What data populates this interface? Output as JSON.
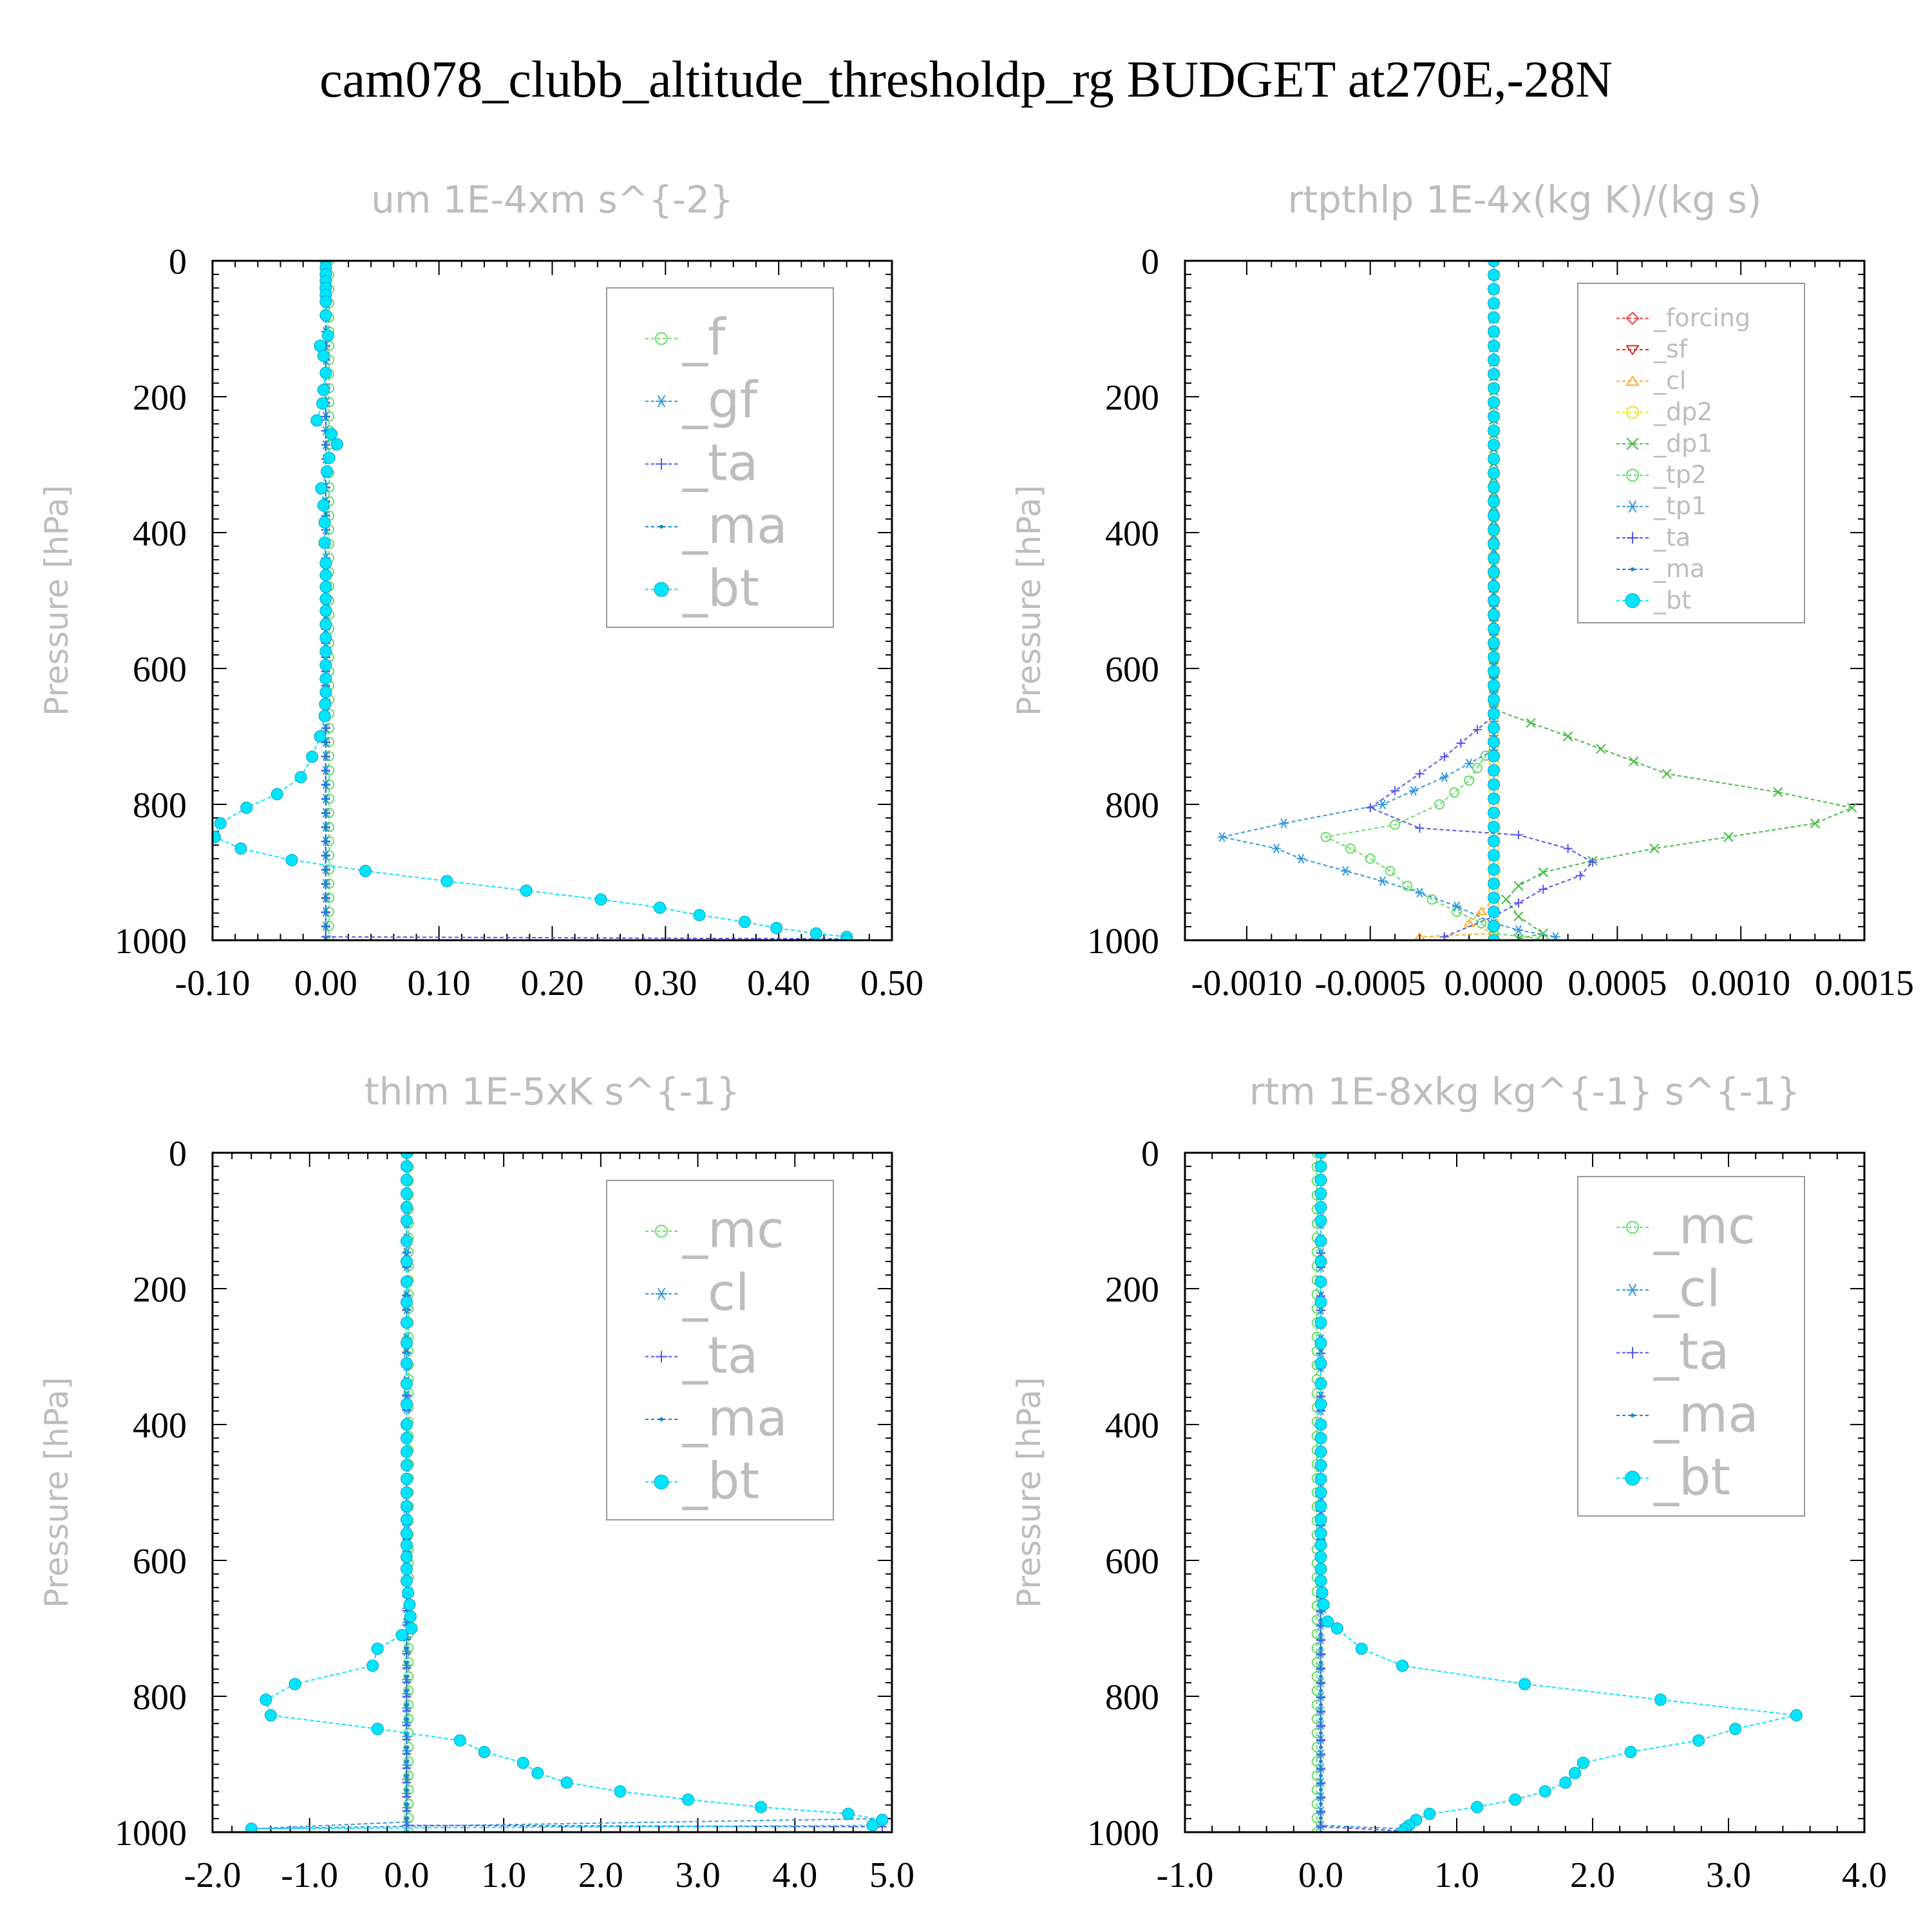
{
  "title": "cam078_clubb_altitude_thresholdp_rg  BUDGET at270E,-28N",
  "chart_data": [
    {
      "type": "line",
      "title": "um  1E-4xm s^{-2}",
      "ylabel": "Pressure [hPa]",
      "xlim": [
        -0.1,
        0.5
      ],
      "ylim": [
        1000,
        0
      ],
      "xticks": [
        "-0.10",
        "0.00",
        "0.10",
        "0.20",
        "0.30",
        "0.40",
        "0.50"
      ],
      "yticks": [
        "0",
        "200",
        "400",
        "600",
        "800",
        "1000"
      ],
      "legend_position": "top-right",
      "series": [
        {
          "name": "_f",
          "color": "#66dd66",
          "marker": "circle-open",
          "x": [
            0.003,
            0.003
          ],
          "y": [
            0,
            1000
          ]
        },
        {
          "name": "_gf",
          "color": "#3399dd",
          "marker": "asterisk",
          "x": [
            0.0,
            0.0
          ],
          "y": [
            0,
            1000
          ]
        },
        {
          "name": "_ta",
          "color": "#5555ee",
          "marker": "plus",
          "x": [
            0.0,
            0.0,
            0.0,
            0.46
          ],
          "y": [
            0,
            980,
            995,
            998
          ]
        },
        {
          "name": "_ma",
          "color": "#1188cc",
          "marker": "dot",
          "x": [
            0.0,
            0.0
          ],
          "y": [
            0,
            1000
          ]
        },
        {
          "name": "_bt",
          "color": "#00e5ff",
          "marker": "circle-filled",
          "x": [
            0.0,
            0.0,
            0.0,
            0.0,
            0.0,
            0.0,
            0.0,
            0.0,
            0.002,
            -0.005,
            -0.002,
            0.0,
            -0.002,
            -0.003,
            -0.008,
            0.005,
            0.01,
            0.003,
            0.001,
            -0.004,
            -0.002,
            -0.001,
            -0.001,
            0.0,
            0.0,
            0.0,
            0.0,
            0.0,
            0.0,
            -0.001,
            -0.005,
            -0.012,
            -0.022,
            -0.043,
            -0.07,
            -0.093,
            -0.098,
            -0.075,
            -0.03,
            0.035,
            0.107,
            0.177,
            0.243,
            0.295,
            0.33,
            0.37,
            0.398,
            0.433,
            0.46,
            0.46
          ],
          "y": [
            0,
            10,
            20,
            30,
            40,
            50,
            60,
            80,
            110,
            125,
            140,
            165,
            190,
            210,
            235,
            255,
            270,
            290,
            310,
            335,
            360,
            385,
            415,
            445,
            480,
            515,
            555,
            595,
            635,
            670,
            700,
            730,
            760,
            785,
            805,
            828,
            848,
            865,
            882,
            898,
            913,
            927,
            940,
            952,
            963,
            973,
            982,
            990,
            995,
            1000
          ]
        }
      ]
    },
    {
      "type": "line",
      "title": "rtpthlp  1E-4x(kg K)/(kg s)",
      "ylabel": "Pressure [hPa]",
      "xlim": [
        -0.00125,
        0.0015
      ],
      "ylim": [
        1000,
        0
      ],
      "xticks": [
        "-0.0010",
        "-0.0005",
        "0.0000",
        "0.0005",
        "0.0010",
        "0.0015"
      ],
      "yticks": [
        "0",
        "200",
        "400",
        "600",
        "800",
        "1000"
      ],
      "legend_position": "top-right",
      "series": [
        {
          "name": "_forcing",
          "color": "#ee4444",
          "marker": "diamond-open",
          "x": [
            0.0,
            0.0
          ],
          "y": [
            0,
            1000
          ]
        },
        {
          "name": "_sf",
          "color": "#ee2222",
          "marker": "triangle-down",
          "x": [
            0.0,
            0.0
          ],
          "y": [
            0,
            1000
          ]
        },
        {
          "name": "_cl",
          "color": "#ffaa33",
          "marker": "triangle-up",
          "x": [
            0.0,
            0.0,
            -0.0001,
            0.0,
            -0.0003
          ],
          "y": [
            0,
            940,
            975,
            990,
            995
          ]
        },
        {
          "name": "_dp2",
          "color": "#eedd33",
          "marker": "circle-open",
          "x": [
            0.0,
            0.0,
            0.0
          ],
          "y": [
            0,
            990,
            995
          ]
        },
        {
          "name": "_dp1",
          "color": "#44bb44",
          "marker": "x",
          "x": [
            0.0,
            0.0,
            0.0003,
            0.0007,
            0.00115,
            0.00145,
            0.0013,
            0.00095,
            0.00065,
            0.0004,
            0.0002,
            0.0001,
            5e-05,
            0.0001,
            0.0002,
            0.0001
          ],
          "y": [
            0,
            660,
            700,
            755,
            782,
            805,
            828,
            848,
            865,
            883,
            900,
            920,
            940,
            965,
            990,
            998
          ]
        },
        {
          "name": "_tp2",
          "color": "#66dd66",
          "marker": "circle-open",
          "x": [
            0.0,
            0.0,
            -0.0001,
            -0.00022,
            -0.0004,
            -0.00068,
            -0.00058,
            -0.0005,
            -0.00042,
            -0.00035,
            -0.00025,
            -0.00015,
            -5e-05,
            0.0,
            0.0002
          ],
          "y": [
            0,
            710,
            765,
            800,
            830,
            848,
            865,
            880,
            898,
            920,
            940,
            958,
            975,
            990,
            998
          ]
        },
        {
          "name": "_tp1",
          "color": "#3399dd",
          "marker": "asterisk",
          "x": [
            0.0,
            0.0,
            -0.0002,
            -0.00045,
            -0.00085,
            -0.0011,
            -0.00088,
            -0.00078,
            -0.0006,
            -0.00045,
            -0.0003,
            -0.00015,
            0.0,
            0.0001,
            0.00025
          ],
          "y": [
            0,
            720,
            760,
            800,
            828,
            848,
            865,
            880,
            898,
            913,
            930,
            950,
            975,
            985,
            995
          ]
        },
        {
          "name": "_ta",
          "color": "#5555ee",
          "marker": "plus",
          "x": [
            0.0,
            0.0,
            -0.0002,
            -0.0004,
            -0.0005,
            -0.0003,
            0.0001,
            0.0003,
            0.0004,
            0.00035,
            0.0002,
            0.0,
            -0.0002
          ],
          "y": [
            0,
            670,
            730,
            780,
            805,
            835,
            845,
            865,
            885,
            905,
            925,
            965,
            995
          ]
        },
        {
          "name": "_ma",
          "color": "#1188cc",
          "marker": "dot",
          "x": [
            0.0,
            0.0
          ],
          "y": [
            0,
            1000
          ]
        },
        {
          "name": "_bt",
          "color": "#00e5ff",
          "marker": "circle-filled",
          "x": [
            0.0,
            0.0
          ],
          "y": [
            0,
            1000
          ]
        }
      ]
    },
    {
      "type": "line",
      "title": "thlm  1E-5xK s^{-1}",
      "ylabel": "Pressure [hPa]",
      "xlim": [
        -2.0,
        5.0
      ],
      "ylim": [
        1000,
        0
      ],
      "xticks": [
        "-2.0",
        "-1.0",
        "0.0",
        "1.0",
        "2.0",
        "3.0",
        "4.0",
        "5.0"
      ],
      "yticks": [
        "0",
        "200",
        "400",
        "600",
        "800",
        "1000"
      ],
      "legend_position": "top-right",
      "series": [
        {
          "name": "_mc",
          "color": "#66dd66",
          "marker": "circle-open",
          "x": [
            0.02,
            0.02
          ],
          "y": [
            0,
            1000
          ]
        },
        {
          "name": "_cl",
          "color": "#3399dd",
          "marker": "asterisk",
          "x": [
            0.0,
            0.0,
            -1.6,
            4.9
          ],
          "y": [
            0,
            985,
            995,
            980
          ]
        },
        {
          "name": "_ta",
          "color": "#5555ee",
          "marker": "plus",
          "x": [
            0.0,
            0.0,
            4.9
          ],
          "y": [
            0,
            990,
            992
          ]
        },
        {
          "name": "_ma",
          "color": "#1188cc",
          "marker": "dot",
          "x": [
            0.0,
            0.0
          ],
          "y": [
            0,
            1000
          ]
        },
        {
          "name": "_bt",
          "color": "#00e5ff",
          "marker": "circle-filled",
          "x": [
            0.0,
            0.0,
            0.0,
            0.0,
            0.0,
            0.0,
            0.0,
            0.0,
            0.0,
            0.0,
            0.0,
            0.0,
            0.0,
            0.0,
            0.0,
            0.0,
            0.0,
            0.0,
            0.0,
            0.0,
            0.0,
            0.0,
            0.03,
            0.05,
            -0.05,
            -0.3,
            -0.35,
            -1.15,
            -1.45,
            -1.4,
            -0.3,
            0.55,
            0.8,
            1.2,
            1.35,
            1.65,
            2.2,
            2.9,
            3.65,
            4.55,
            4.9,
            4.8,
            -1.6
          ],
          "y": [
            0,
            20,
            40,
            60,
            80,
            100,
            130,
            160,
            190,
            220,
            250,
            280,
            310,
            340,
            370,
            400,
            440,
            480,
            520,
            560,
            595,
            630,
            665,
            700,
            710,
            730,
            755,
            782,
            805,
            828,
            848,
            865,
            882,
            898,
            913,
            927,
            940,
            952,
            963,
            973,
            982,
            990,
            995
          ]
        }
      ]
    },
    {
      "type": "line",
      "title": "rtm  1E-8xkg kg^{-1} s^{-1}",
      "ylabel": "Pressure [hPa]",
      "xlim": [
        -1.0,
        4.0
      ],
      "ylim": [
        1000,
        0
      ],
      "xticks": [
        "-1.0",
        "0.0",
        "1.0",
        "2.0",
        "3.0",
        "4.0"
      ],
      "yticks": [
        "0",
        "200",
        "400",
        "600",
        "800",
        "1000"
      ],
      "legend_position": "top-right",
      "series": [
        {
          "name": "_mc",
          "color": "#66dd66",
          "marker": "circle-open",
          "x": [
            -0.03,
            -0.03
          ],
          "y": [
            0,
            1000
          ]
        },
        {
          "name": "_cl",
          "color": "#3399dd",
          "marker": "asterisk",
          "x": [
            0.0,
            0.0,
            0.6
          ],
          "y": [
            0,
            990,
            995
          ]
        },
        {
          "name": "_ta",
          "color": "#5555ee",
          "marker": "plus",
          "x": [
            0.0,
            0.0,
            0.6
          ],
          "y": [
            0,
            992,
            998
          ]
        },
        {
          "name": "_ma",
          "color": "#1188cc",
          "marker": "dot",
          "x": [
            0.0,
            0.0
          ],
          "y": [
            0,
            1000
          ]
        },
        {
          "name": "_bt",
          "color": "#00e5ff",
          "marker": "circle-filled",
          "x": [
            0.0,
            0.0,
            0.0,
            0.0,
            0.0,
            0.0,
            0.0,
            0.0,
            0.0,
            0.0,
            0.0,
            0.0,
            0.0,
            0.0,
            0.0,
            0.0,
            0.0,
            0.0,
            0.0,
            0.0,
            0.0,
            0.0,
            0.02,
            0.05,
            0.12,
            0.3,
            0.6,
            1.5,
            2.5,
            3.5,
            3.05,
            2.78,
            2.28,
            1.93,
            1.87,
            1.8,
            1.65,
            1.43,
            1.15,
            0.8,
            0.7,
            0.65,
            0.62,
            0.6
          ],
          "y": [
            0,
            20,
            40,
            60,
            80,
            100,
            130,
            160,
            190,
            220,
            250,
            280,
            310,
            340,
            370,
            400,
            440,
            480,
            520,
            560,
            595,
            630,
            665,
            690,
            700,
            730,
            755,
            782,
            805,
            828,
            848,
            865,
            882,
            898,
            913,
            927,
            940,
            952,
            963,
            973,
            982,
            990,
            995,
            1000
          ]
        }
      ]
    }
  ]
}
